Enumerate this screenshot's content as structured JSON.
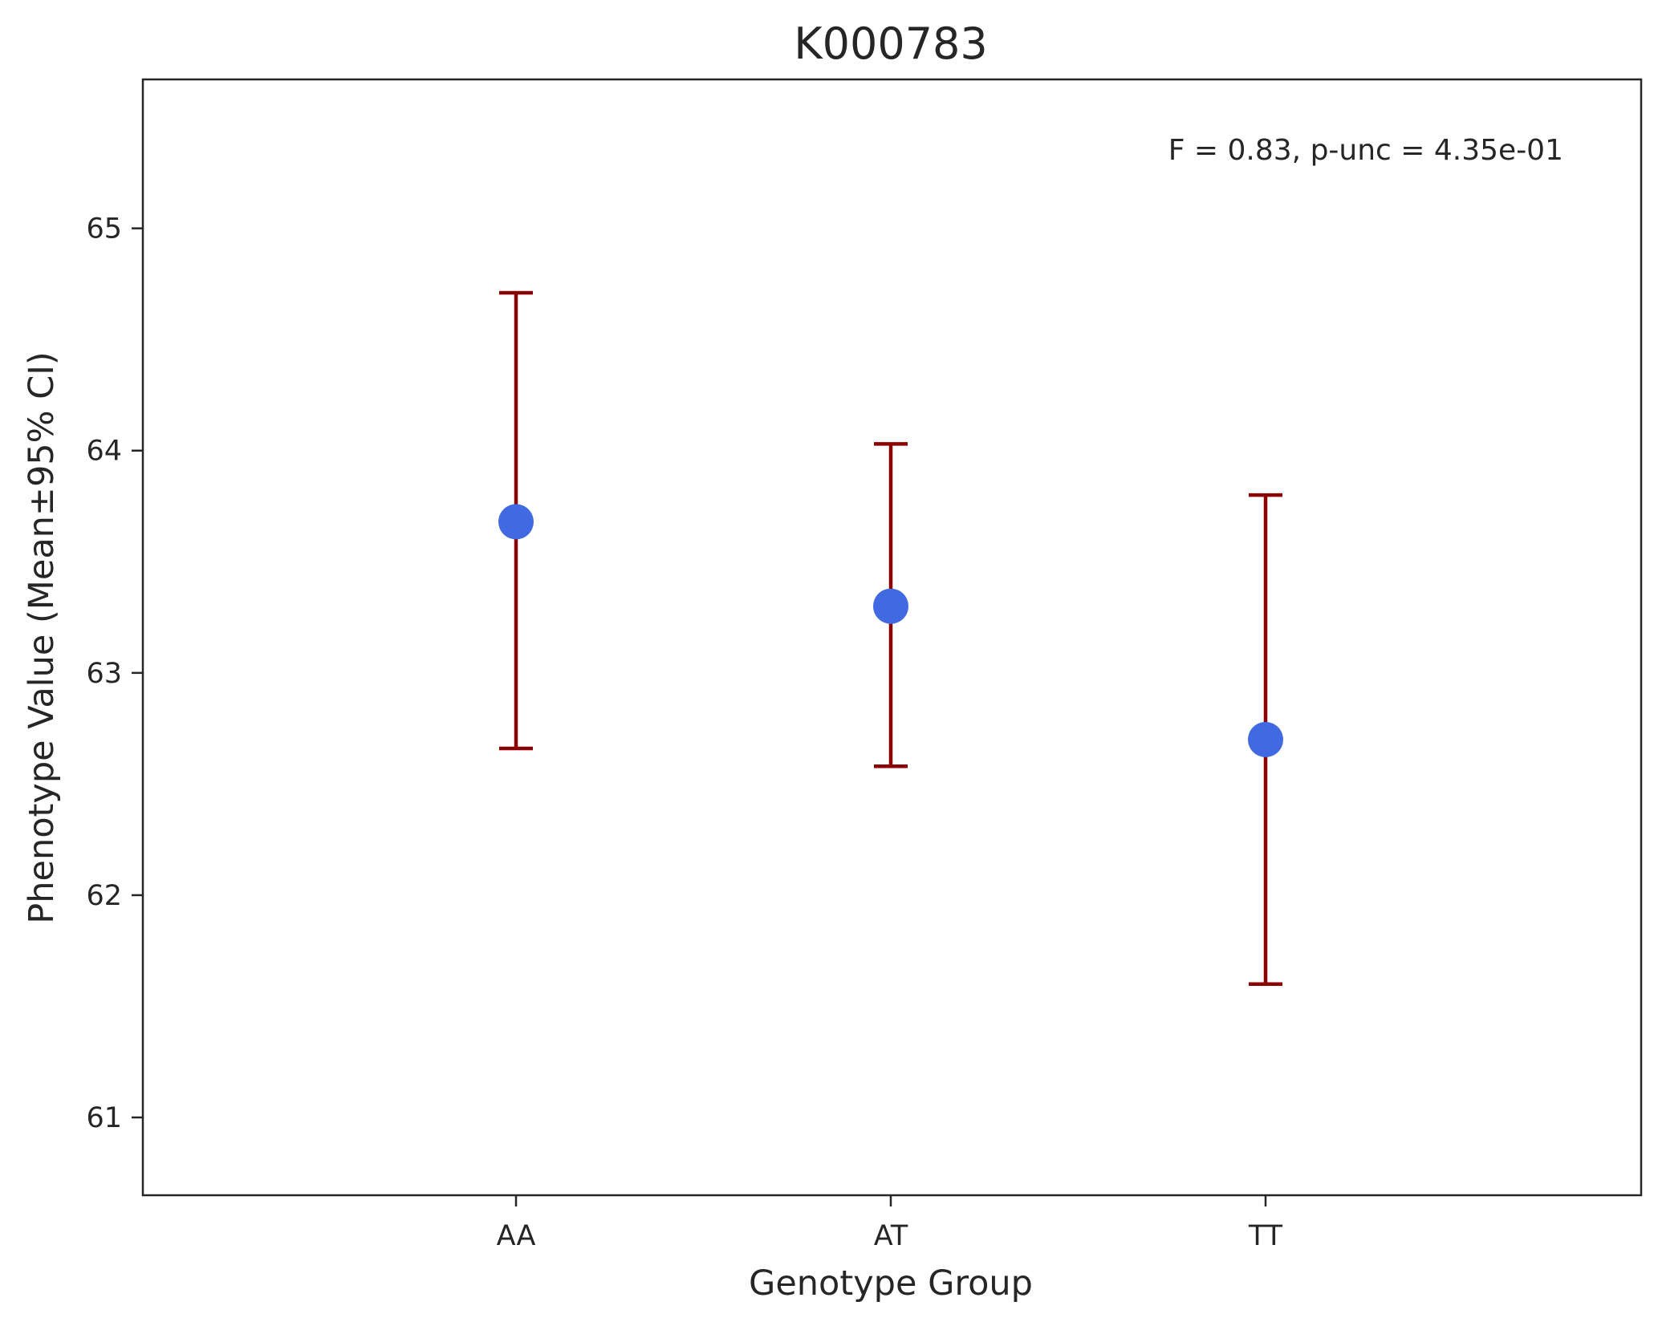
{
  "chart_data": {
    "type": "scatter",
    "title": "K000783",
    "xlabel": "Genotype Group",
    "ylabel": "Phenotype Value (Mean±95% CI)",
    "categories": [
      "AA",
      "AT",
      "TT"
    ],
    "series": [
      {
        "values": [
          63.68,
          63.3,
          62.7
        ],
        "ci_lower": [
          62.66,
          62.58,
          61.6
        ],
        "ci_upper": [
          64.71,
          64.03,
          63.8
        ]
      }
    ],
    "ylim": [
      60.65,
      65.67
    ],
    "yticks": [
      61,
      62,
      63,
      64,
      65
    ],
    "ytick_labels": [
      "61",
      "62",
      "63",
      "64",
      "65"
    ],
    "annotation": "F = 0.83, p-unc = 4.35e-01",
    "annotation_position": "top-right",
    "grid": false,
    "legend": "none",
    "colors": {
      "marker": "#4169e1",
      "errorbar": "#8b0000",
      "axes": "#262626",
      "text": "#262626"
    }
  }
}
